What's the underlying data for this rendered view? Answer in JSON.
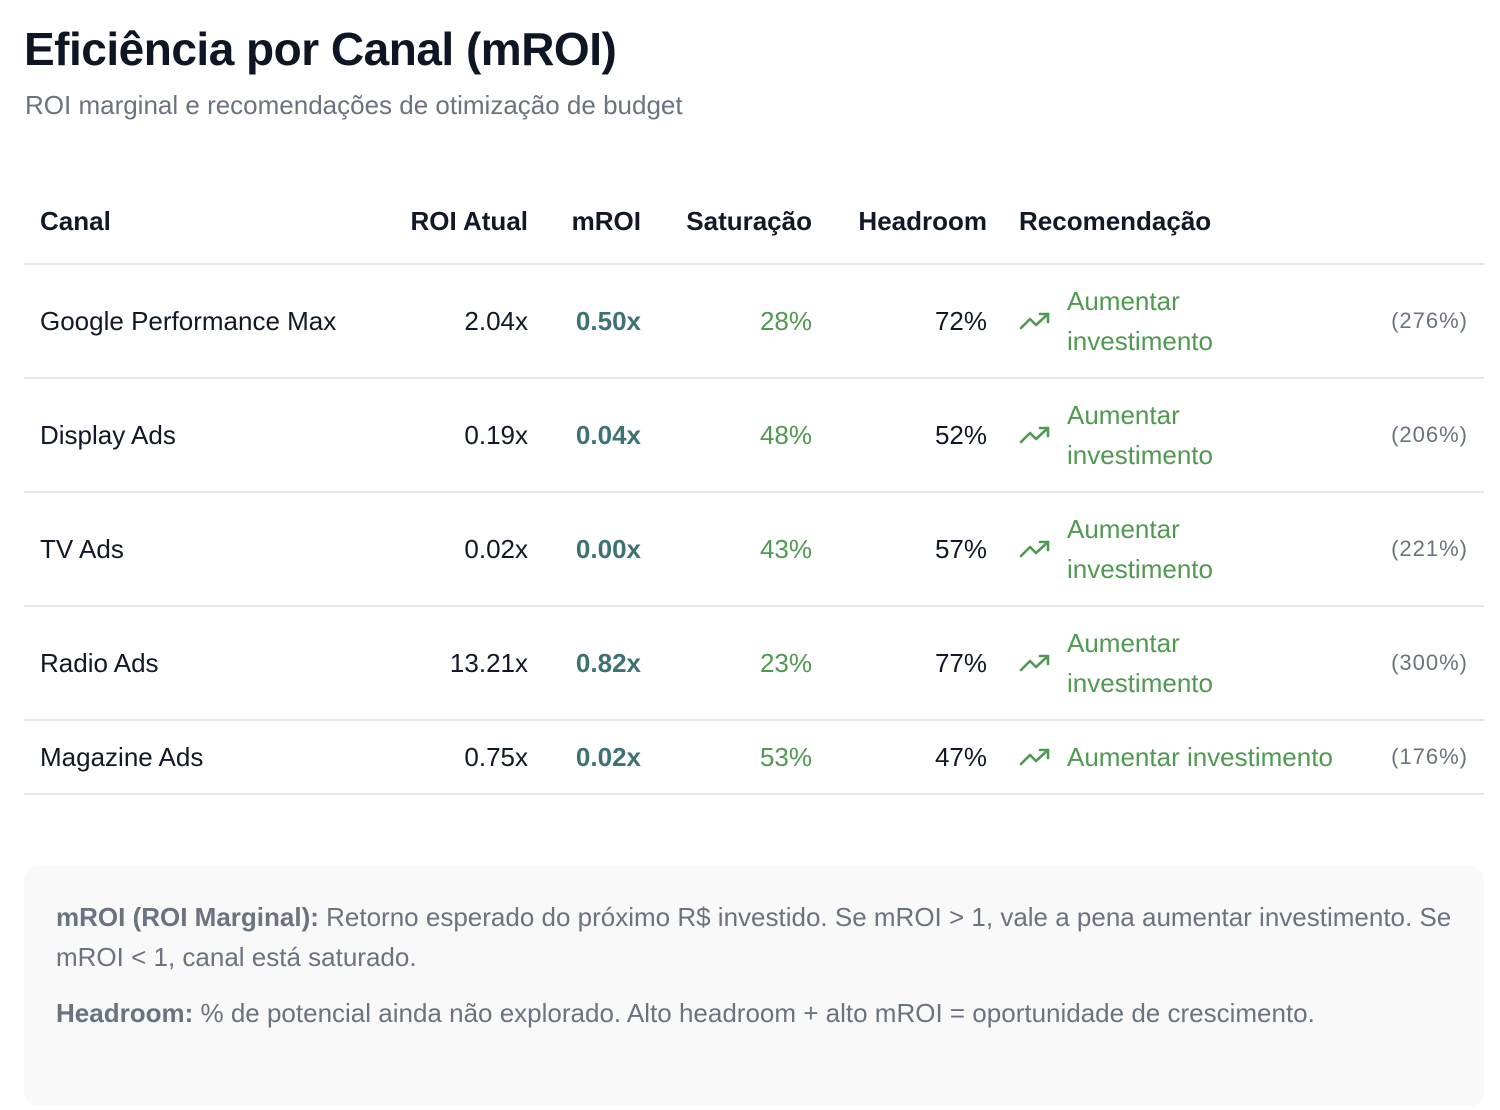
{
  "header": {
    "title": "Eficiência por Canal (mROI)",
    "subtitle": "ROI marginal e recomendações de otimização de budget"
  },
  "table": {
    "columns": {
      "canal": "Canal",
      "roi": "ROI Atual",
      "mroi": "mROI",
      "saturacao": "Saturação",
      "headroom": "Headroom",
      "recomendacao": "Recomendação"
    },
    "rows": [
      {
        "canal": "Google Performance Max",
        "roi": "2.04x",
        "mroi": "0.50x",
        "saturacao": "28%",
        "headroom": "72%",
        "recomendacao": "Aumentar investimento",
        "pct": "(276%)",
        "icon": "trending-up-icon"
      },
      {
        "canal": "Display Ads",
        "roi": "0.19x",
        "mroi": "0.04x",
        "saturacao": "48%",
        "headroom": "52%",
        "recomendacao": "Aumentar investimento",
        "pct": "(206%)",
        "icon": "trending-up-icon"
      },
      {
        "canal": "TV Ads",
        "roi": "0.02x",
        "mroi": "0.00x",
        "saturacao": "43%",
        "headroom": "57%",
        "recomendacao": "Aumentar investimento",
        "pct": "(221%)",
        "icon": "trending-up-icon"
      },
      {
        "canal": "Radio Ads",
        "roi": "13.21x",
        "mroi": "0.82x",
        "saturacao": "23%",
        "headroom": "77%",
        "recomendacao": "Aumentar investimento",
        "pct": "(300%)",
        "icon": "trending-up-icon"
      },
      {
        "canal": "Magazine Ads",
        "roi": "0.75x",
        "mroi": "0.02x",
        "saturacao": "53%",
        "headroom": "47%",
        "recomendacao": "Aumentar investimento",
        "pct": "(176%)",
        "icon": "trending-up-icon"
      }
    ]
  },
  "info": {
    "mroi_term": "mROI (ROI Marginal):",
    "mroi_text": "Retorno esperado do próximo R$ investido. Se mROI > 1, vale a pena aumentar investimento. Se mROI < 1, canal está saturado.",
    "headroom_term": "Headroom:",
    "headroom_text": "% de potencial ainda não explorado. Alto headroom + alto mROI = oportunidade de crescimento."
  },
  "colors": {
    "mroi": "#3d7275",
    "positive": "#4f9a50",
    "muted": "#6b7280",
    "divider": "#e5e7eb",
    "info_bg": "#f9f9fa"
  }
}
